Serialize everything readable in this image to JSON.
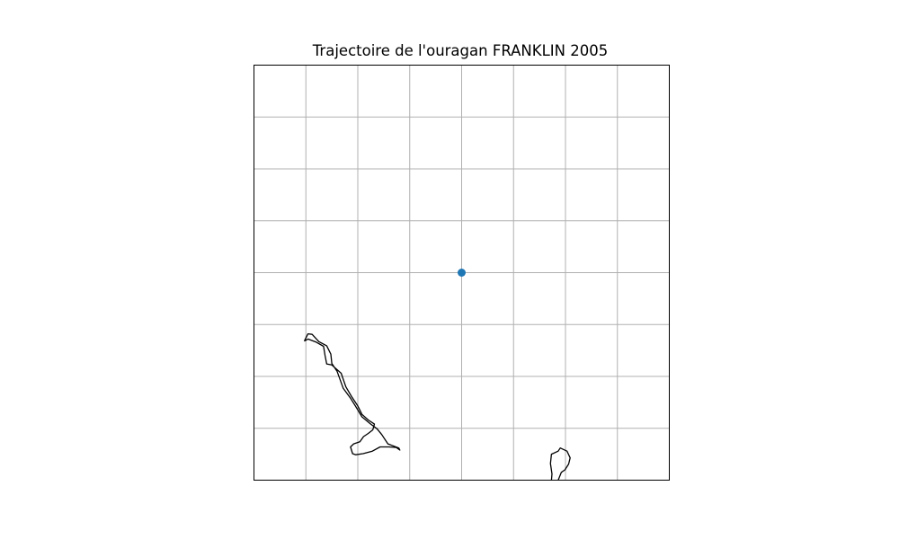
{
  "title": "Trajectoire de l'ouragan FRANKLIN 2005",
  "colors": {
    "track": "#1f77b4",
    "coastline": "#000000",
    "grid": "#b0b0b0",
    "frame": "#000000",
    "background": "#ffffff"
  },
  "chart_data": {
    "type": "scatter",
    "title": "Trajectoire de l'ouragan FRANKLIN 2005",
    "xlabel": "",
    "ylabel": "",
    "xlim": [
      0,
      8
    ],
    "ylim": [
      0,
      8
    ],
    "grid": true,
    "grid_lines_x": [
      1,
      2,
      3,
      4,
      5,
      6,
      7
    ],
    "grid_lines_y": [
      1,
      2,
      3,
      4,
      5,
      6,
      7
    ],
    "series": [
      {
        "points": [
          {
            "x": 4,
            "y": 4
          }
        ],
        "marker": "circle",
        "color": "#1f77b4"
      }
    ],
    "coastlines": [
      {
        "name": "landmass-left",
        "points": [
          [
            0.97,
            2.68
          ],
          [
            1.04,
            2.82
          ],
          [
            1.12,
            2.81
          ],
          [
            1.25,
            2.67
          ],
          [
            1.4,
            2.59
          ],
          [
            1.48,
            2.43
          ],
          [
            1.5,
            2.25
          ],
          [
            1.6,
            2.1
          ],
          [
            1.72,
            1.77
          ],
          [
            1.86,
            1.58
          ],
          [
            1.96,
            1.42
          ],
          [
            2.08,
            1.22
          ],
          [
            2.25,
            1.08
          ],
          [
            2.37,
            0.99
          ],
          [
            2.46,
            0.88
          ],
          [
            2.58,
            0.7
          ],
          [
            2.79,
            0.62
          ],
          [
            2.81,
            0.58
          ],
          [
            2.74,
            0.63
          ],
          [
            2.6,
            0.64
          ],
          [
            2.43,
            0.64
          ],
          [
            2.28,
            0.56
          ],
          [
            2.1,
            0.51
          ],
          [
            1.96,
            0.49
          ],
          [
            1.9,
            0.51
          ],
          [
            1.86,
            0.64
          ],
          [
            1.92,
            0.7
          ],
          [
            2.04,
            0.74
          ],
          [
            2.11,
            0.84
          ],
          [
            2.2,
            0.9
          ],
          [
            2.29,
            0.97
          ],
          [
            2.32,
            1.08
          ],
          [
            2.2,
            1.16
          ],
          [
            2.08,
            1.27
          ],
          [
            2.0,
            1.43
          ],
          [
            1.88,
            1.61
          ],
          [
            1.77,
            1.8
          ],
          [
            1.68,
            2.06
          ],
          [
            1.5,
            2.22
          ],
          [
            1.4,
            2.24
          ],
          [
            1.37,
            2.4
          ],
          [
            1.34,
            2.58
          ],
          [
            1.2,
            2.66
          ],
          [
            1.04,
            2.72
          ],
          [
            0.97,
            2.68
          ]
        ]
      },
      {
        "name": "landmass-right",
        "points": [
          [
            5.86,
            0.0
          ],
          [
            5.92,
            0.15
          ],
          [
            5.99,
            0.2
          ],
          [
            6.06,
            0.31
          ],
          [
            6.09,
            0.43
          ],
          [
            6.03,
            0.56
          ],
          [
            5.9,
            0.62
          ],
          [
            5.86,
            0.56
          ],
          [
            5.73,
            0.5
          ],
          [
            5.71,
            0.32
          ],
          [
            5.74,
            0.12
          ],
          [
            5.73,
            0.0
          ]
        ]
      }
    ]
  }
}
